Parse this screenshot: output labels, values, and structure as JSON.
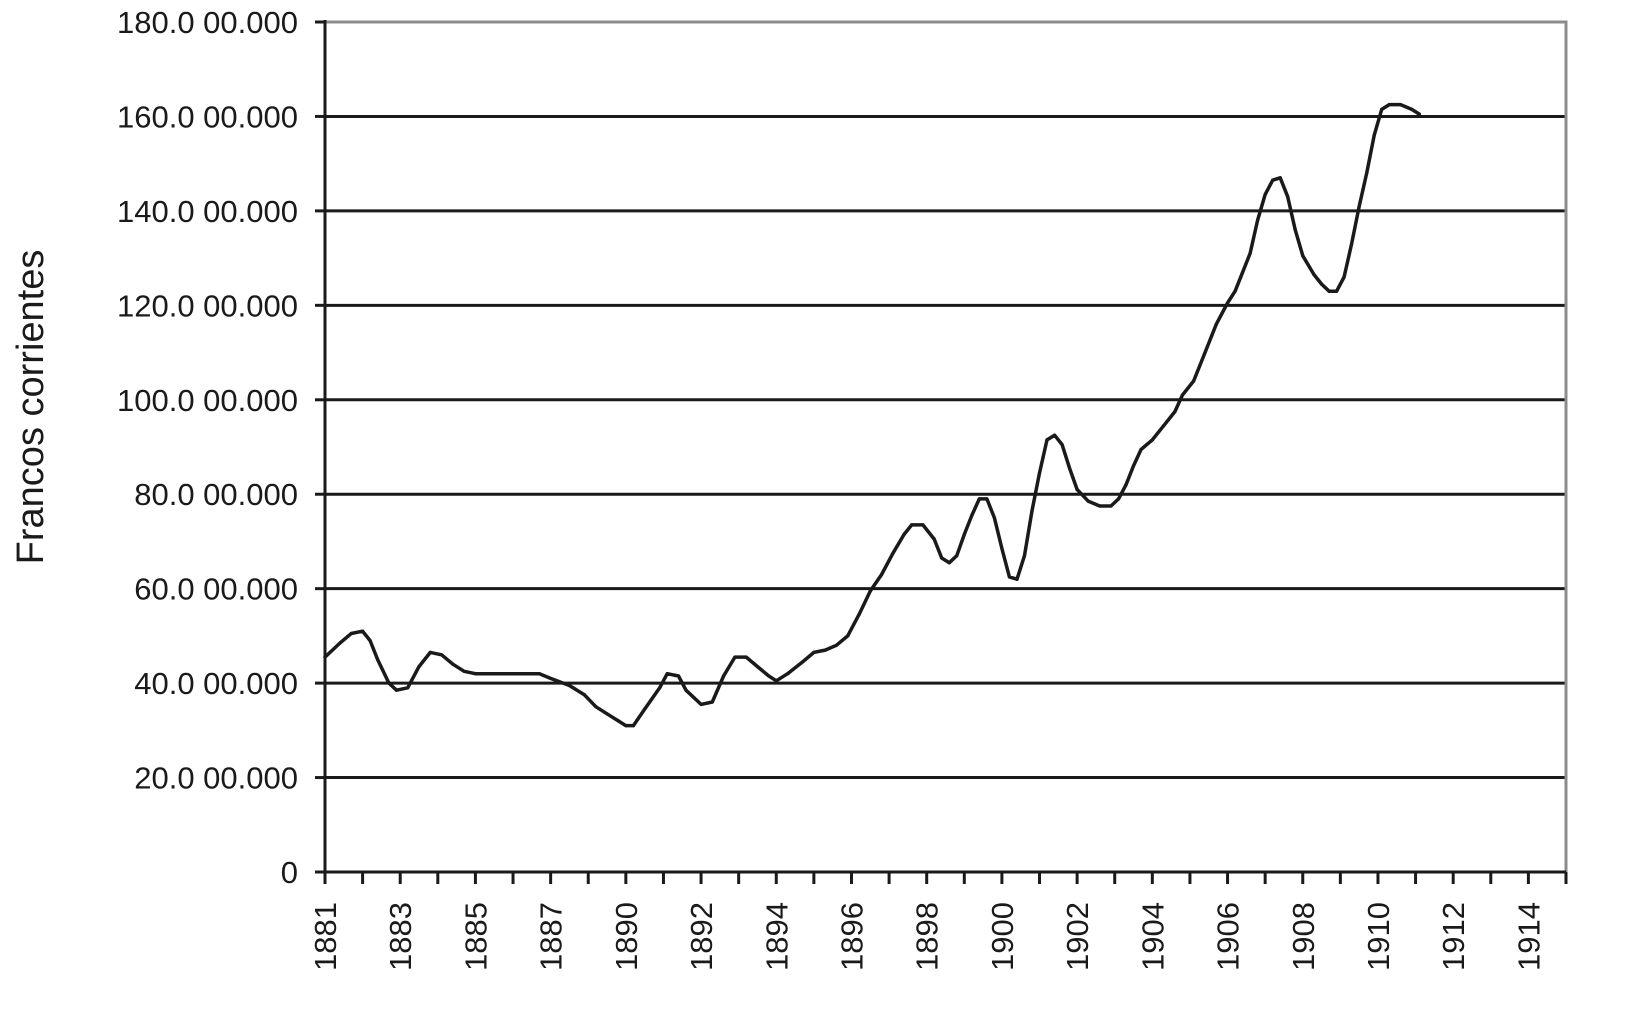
{
  "chart_data": {
    "type": "line",
    "title": "",
    "xlabel": "",
    "ylabel": "Francos corrientes",
    "ylim": [
      0,
      180000000
    ],
    "xlim": [
      1881,
      1914
    ],
    "grid": true,
    "y_ticks": [
      {
        "value": 0,
        "label": "0"
      },
      {
        "value": 20000000,
        "label": "20.0 00.000"
      },
      {
        "value": 40000000,
        "label": "40.0 00.000"
      },
      {
        "value": 60000000,
        "label": "60.0 00.000"
      },
      {
        "value": 80000000,
        "label": "80.0 00.000"
      },
      {
        "value": 100000000,
        "label": "100.0 00.000"
      },
      {
        "value": 120000000,
        "label": "120.0 00.000"
      },
      {
        "value": 140000000,
        "label": "140.0 00.000"
      },
      {
        "value": 160000000,
        "label": "160.0 00.000"
      },
      {
        "value": 180000000,
        "label": "180.0 00.000"
      }
    ],
    "x_tick_labels": [
      {
        "value": 1881,
        "label": "1881"
      },
      {
        "value": 1883,
        "label": "1883"
      },
      {
        "value": 1885,
        "label": "1885"
      },
      {
        "value": 1887,
        "label": "1887"
      },
      {
        "value": 1889,
        "label": "1890"
      },
      {
        "value": 1891,
        "label": "1892"
      },
      {
        "value": 1893,
        "label": "1894"
      },
      {
        "value": 1895,
        "label": "1896"
      },
      {
        "value": 1897,
        "label": "1898"
      },
      {
        "value": 1899,
        "label": "1900"
      },
      {
        "value": 1901,
        "label": "1902"
      },
      {
        "value": 1903,
        "label": "1904"
      },
      {
        "value": 1905,
        "label": "1906"
      },
      {
        "value": 1907,
        "label": "1908"
      },
      {
        "value": 1909,
        "label": "1910"
      },
      {
        "value": 1911,
        "label": "1912"
      },
      {
        "value": 1913,
        "label": "1914"
      }
    ],
    "series": [
      {
        "color": "#1a1a1a",
        "points": [
          [
            1881.0,
            45500000
          ],
          [
            1881.4,
            48500000
          ],
          [
            1881.7,
            50500000
          ],
          [
            1882.0,
            51000000
          ],
          [
            1882.2,
            49000000
          ],
          [
            1882.4,
            45000000
          ],
          [
            1882.7,
            40000000
          ],
          [
            1882.9,
            38500000
          ],
          [
            1883.2,
            39000000
          ],
          [
            1883.5,
            43500000
          ],
          [
            1883.8,
            46500000
          ],
          [
            1884.1,
            46000000
          ],
          [
            1884.4,
            44000000
          ],
          [
            1884.7,
            42500000
          ],
          [
            1885.0,
            42000000
          ],
          [
            1886.0,
            42000000
          ],
          [
            1886.7,
            42000000
          ],
          [
            1887.0,
            41000000
          ],
          [
            1887.5,
            39500000
          ],
          [
            1887.9,
            37500000
          ],
          [
            1888.2,
            35000000
          ],
          [
            1888.5,
            33500000
          ],
          [
            1888.8,
            32000000
          ],
          [
            1889.0,
            31000000
          ],
          [
            1889.2,
            31000000
          ],
          [
            1889.5,
            34500000
          ],
          [
            1889.9,
            39000000
          ],
          [
            1890.1,
            42000000
          ],
          [
            1890.4,
            41500000
          ],
          [
            1890.6,
            38500000
          ],
          [
            1891.0,
            35500000
          ],
          [
            1891.3,
            36000000
          ],
          [
            1891.6,
            41500000
          ],
          [
            1891.9,
            45500000
          ],
          [
            1892.2,
            45500000
          ],
          [
            1892.5,
            43500000
          ],
          [
            1892.8,
            41500000
          ],
          [
            1893.0,
            40500000
          ],
          [
            1893.3,
            42000000
          ],
          [
            1893.7,
            44500000
          ],
          [
            1894.0,
            46500000
          ],
          [
            1894.3,
            47000000
          ],
          [
            1894.6,
            48000000
          ],
          [
            1894.9,
            50000000
          ],
          [
            1895.2,
            54500000
          ],
          [
            1895.5,
            59500000
          ],
          [
            1895.8,
            63000000
          ],
          [
            1896.1,
            67500000
          ],
          [
            1896.4,
            71500000
          ],
          [
            1896.6,
            73500000
          ],
          [
            1896.9,
            73500000
          ],
          [
            1897.2,
            70500000
          ],
          [
            1897.4,
            66500000
          ],
          [
            1897.6,
            65500000
          ],
          [
            1897.8,
            67000000
          ],
          [
            1898.0,
            71500000
          ],
          [
            1898.2,
            75500000
          ],
          [
            1898.4,
            79000000
          ],
          [
            1898.6,
            79000000
          ],
          [
            1898.8,
            75000000
          ],
          [
            1899.0,
            68500000
          ],
          [
            1899.2,
            62500000
          ],
          [
            1899.4,
            62000000
          ],
          [
            1899.6,
            67000000
          ],
          [
            1899.8,
            76500000
          ],
          [
            1900.0,
            84500000
          ],
          [
            1900.2,
            91500000
          ],
          [
            1900.4,
            92500000
          ],
          [
            1900.6,
            90500000
          ],
          [
            1900.8,
            85500000
          ],
          [
            1901.0,
            81000000
          ],
          [
            1901.3,
            78500000
          ],
          [
            1901.6,
            77500000
          ],
          [
            1901.9,
            77500000
          ],
          [
            1902.1,
            79000000
          ],
          [
            1902.3,
            82000000
          ],
          [
            1902.5,
            86000000
          ],
          [
            1902.7,
            89500000
          ],
          [
            1903.0,
            91500000
          ],
          [
            1903.3,
            94500000
          ],
          [
            1903.6,
            97500000
          ],
          [
            1903.8,
            101000000
          ],
          [
            1904.1,
            104000000
          ],
          [
            1904.4,
            110000000
          ],
          [
            1904.7,
            116000000
          ],
          [
            1905.0,
            120500000
          ],
          [
            1905.2,
            123000000
          ],
          [
            1905.4,
            127000000
          ],
          [
            1905.6,
            131000000
          ],
          [
            1905.8,
            138000000
          ],
          [
            1906.0,
            143500000
          ],
          [
            1906.2,
            146500000
          ],
          [
            1906.4,
            147000000
          ],
          [
            1906.6,
            143000000
          ],
          [
            1906.8,
            136000000
          ],
          [
            1907.0,
            130500000
          ],
          [
            1907.3,
            126500000
          ],
          [
            1907.5,
            124500000
          ],
          [
            1907.7,
            123000000
          ],
          [
            1907.9,
            123000000
          ],
          [
            1908.1,
            126000000
          ],
          [
            1908.3,
            133000000
          ],
          [
            1908.5,
            141000000
          ],
          [
            1908.7,
            148000000
          ],
          [
            1908.9,
            156000000
          ],
          [
            1909.1,
            161500000
          ],
          [
            1909.3,
            162500000
          ],
          [
            1909.6,
            162500000
          ],
          [
            1909.9,
            161500000
          ],
          [
            1910.1,
            160500000
          ]
        ]
      }
    ]
  }
}
